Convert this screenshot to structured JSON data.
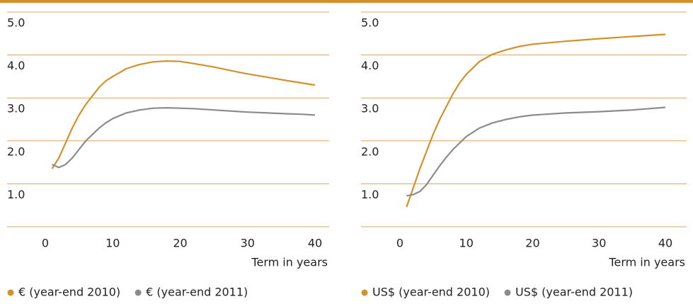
{
  "chart_data": [
    {
      "type": "line",
      "x_label": "Term in years",
      "x": [
        1,
        2,
        3,
        4,
        5,
        6,
        7,
        8,
        9,
        10,
        12,
        14,
        16,
        18,
        20,
        22,
        25,
        28,
        30,
        33,
        36,
        38,
        40
      ],
      "series": [
        {
          "name": "€ (year-end 2010)",
          "color": "#d4912a",
          "values": [
            1.35,
            1.6,
            1.95,
            2.3,
            2.6,
            2.85,
            3.05,
            3.25,
            3.4,
            3.5,
            3.68,
            3.78,
            3.84,
            3.86,
            3.85,
            3.8,
            3.72,
            3.62,
            3.56,
            3.48,
            3.4,
            3.35,
            3.3
          ]
        },
        {
          "name": "€ (year-end 2011)",
          "color": "#8c8c8c",
          "values": [
            1.45,
            1.38,
            1.45,
            1.6,
            1.8,
            2.0,
            2.15,
            2.3,
            2.42,
            2.52,
            2.65,
            2.72,
            2.76,
            2.77,
            2.76,
            2.75,
            2.72,
            2.69,
            2.67,
            2.65,
            2.63,
            2.62,
            2.6
          ]
        }
      ],
      "xlim": [
        -5.67,
        42.1
      ],
      "xticks": [
        0,
        10,
        20,
        30,
        40
      ],
      "ylim": [
        0,
        5
      ],
      "yticks": [
        {
          "value": 1,
          "label": "1.0"
        },
        {
          "value": 2,
          "label": "2.0"
        },
        {
          "value": 3,
          "label": "3.0"
        },
        {
          "value": 4,
          "label": "4.0"
        },
        {
          "value": 5,
          "label": "5.0"
        }
      ],
      "grid": true
    },
    {
      "type": "line",
      "x_label": "Term in years",
      "x": [
        1,
        2,
        3,
        4,
        5,
        6,
        7,
        8,
        9,
        10,
        12,
        14,
        16,
        18,
        20,
        25,
        30,
        35,
        40
      ],
      "series": [
        {
          "name": "US$ (year-end 2010)",
          "color": "#d4912a",
          "values": [
            0.46,
            0.9,
            1.35,
            1.75,
            2.15,
            2.5,
            2.8,
            3.1,
            3.35,
            3.55,
            3.85,
            4.02,
            4.12,
            4.2,
            4.25,
            4.32,
            4.38,
            4.43,
            4.48
          ]
        },
        {
          "name": "US$ (year-end 2011)",
          "color": "#8c8c8c",
          "values": [
            0.72,
            0.75,
            0.82,
            0.98,
            1.2,
            1.42,
            1.62,
            1.8,
            1.95,
            2.1,
            2.3,
            2.42,
            2.5,
            2.56,
            2.6,
            2.65,
            2.68,
            2.72,
            2.78
          ]
        }
      ],
      "xlim": [
        -5.86,
        43.2
      ],
      "xticks": [
        0,
        10,
        20,
        30,
        40
      ],
      "ylim": [
        0,
        5
      ],
      "yticks": [
        {
          "value": 1,
          "label": "1.0"
        },
        {
          "value": 2,
          "label": "2.0"
        },
        {
          "value": 3,
          "label": "3.0"
        },
        {
          "value": 4,
          "label": "4.0"
        },
        {
          "value": 5,
          "label": "5.0"
        }
      ],
      "grid": true
    }
  ]
}
